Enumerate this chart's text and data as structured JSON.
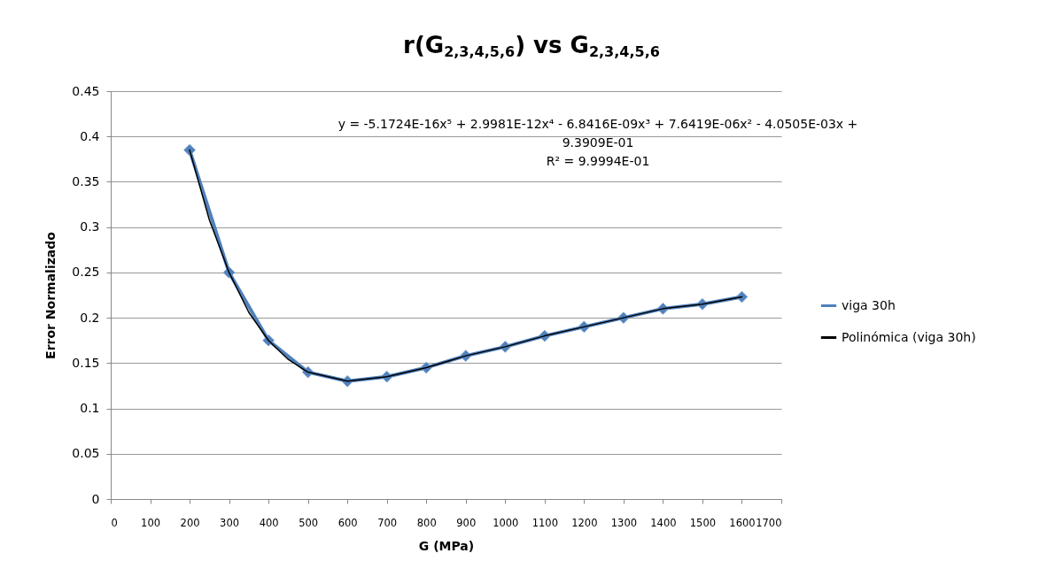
{
  "chart_data": {
    "type": "line",
    "title": "r(G$_{2,3,4,5,6}$) vs G$_{2,3,4,5,6}$",
    "xlabel": "G (MPa)",
    "ylabel": "Error Normalizado",
    "xlim": [
      0,
      1700
    ],
    "xticks": [
      0,
      100,
      200,
      300,
      400,
      500,
      600,
      700,
      800,
      900,
      1000,
      1100,
      1200,
      1300,
      1400,
      1500,
      1600,
      1700
    ],
    "ylim": [
      0,
      0.45
    ],
    "yticks": [
      0,
      0.05,
      0.1,
      0.15,
      0.2,
      0.25,
      0.3,
      0.35,
      0.4,
      0.45
    ],
    "grid": "y",
    "legend": "right",
    "annotations": [
      "y = -5.1724E-16x⁵ + 2.9981E-12x⁴ - 6.8416E-09x³ + 7.6419E-06x² - 4.0505E-03x + 9.3909E-01",
      "R² = 9.9994E-01"
    ],
    "series": [
      {
        "name": "viga 30h",
        "color": "#4f81bd",
        "marker": "diamond",
        "x": [
          200,
          300,
          400,
          500,
          600,
          700,
          800,
          900,
          1000,
          1100,
          1200,
          1300,
          1400,
          1500,
          1600
        ],
        "values": [
          0.385,
          0.25,
          0.175,
          0.14,
          0.13,
          0.135,
          0.145,
          0.158,
          0.168,
          0.18,
          0.19,
          0.2,
          0.21,
          0.215,
          0.223
        ]
      },
      {
        "name": "Polinómica (viga 30h)",
        "type": "line",
        "color": "#000000",
        "marker": "none",
        "x": [
          200,
          250,
          300,
          350,
          400,
          450,
          500,
          600,
          700,
          800,
          900,
          1000,
          1100,
          1200,
          1300,
          1400,
          1500,
          1600
        ],
        "values": [
          0.385,
          0.308,
          0.25,
          0.206,
          0.175,
          0.154,
          0.14,
          0.13,
          0.135,
          0.145,
          0.158,
          0.168,
          0.18,
          0.19,
          0.2,
          0.21,
          0.215,
          0.223
        ]
      }
    ]
  }
}
